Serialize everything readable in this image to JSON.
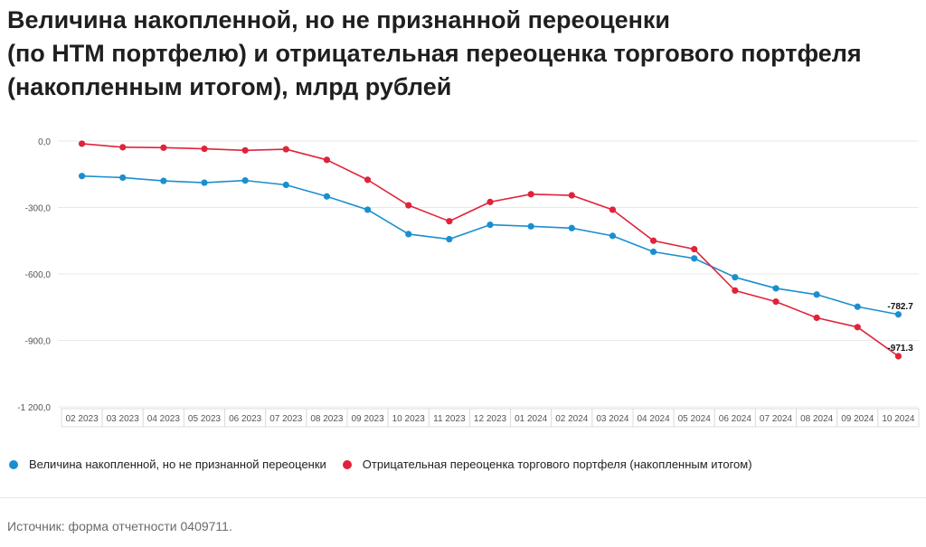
{
  "title_lines": [
    "Величина накопленной, но не признанной переоценки",
    "(по НТМ портфелю) и отрицательная переоценка торгового портфеля",
    "(накопленным итогом), млрд рублей"
  ],
  "source": "Источник: форма отчетности 0409711.",
  "colors": {
    "series1": "#1a8fcf",
    "series2": "#e0233a",
    "grid": "#e8e8e8",
    "axis": "#555555"
  },
  "chart_data": {
    "type": "line",
    "title": "Величина накопленной, но не признанной переоценки (по НТМ портфелю) и отрицательная переоценка торгового портфеля (накопленным итогом), млрд рублей",
    "categories": [
      "02 2023",
      "03 2023",
      "04 2023",
      "05 2023",
      "06 2023",
      "07 2023",
      "08 2023",
      "09 2023",
      "10 2023",
      "11 2023",
      "12 2023",
      "01 2024",
      "02 2024",
      "03 2024",
      "04 2024",
      "05 2024",
      "06 2024",
      "07 2024",
      "08 2024",
      "09 2024",
      "10 2024"
    ],
    "ylim": [
      -1200,
      0
    ],
    "yticks": [
      0,
      -300,
      -600,
      -900,
      -1200
    ],
    "ytick_labels": [
      "0,0",
      "-300,0",
      "-600,0",
      "-900,0",
      "-1 200,0"
    ],
    "grid": true,
    "legend_position": "bottom",
    "series": [
      {
        "name": "Величина накопленной, но не признанной переоценки",
        "color": "#1a8fcf",
        "values": [
          -158,
          -165,
          -180,
          -188,
          -178,
          -198,
          -250,
          -310,
          -420,
          -443,
          -378,
          -385,
          -393,
          -428,
          -500,
          -530,
          -615,
          -665,
          -693,
          -748,
          -782.7
        ],
        "last_label": "-782.7"
      },
      {
        "name": "Отрицательная переоценка торгового портфеля (накопленным итогом)",
        "color": "#e0233a",
        "values": [
          -12,
          -28,
          -30,
          -35,
          -42,
          -37,
          -85,
          -175,
          -290,
          -362,
          -275,
          -240,
          -245,
          -310,
          -450,
          -488,
          -675,
          -725,
          -798,
          -840,
          -971.3
        ],
        "last_label": "-971.3"
      }
    ]
  }
}
